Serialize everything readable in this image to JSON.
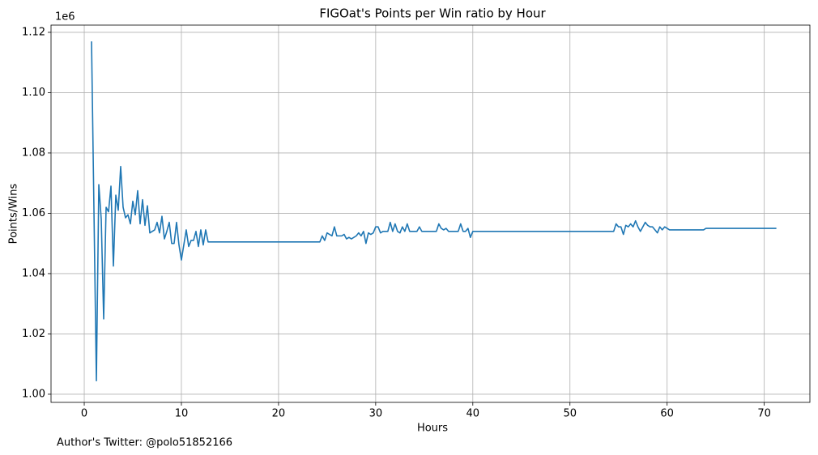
{
  "chart_data": {
    "type": "line",
    "title": "FIGOat's Points per Win ratio by Hour",
    "x_label": "Hours",
    "y_label": "Points/Wins",
    "y_offset_label": "1e6",
    "caption": "Author's Twitter: @polo51852166",
    "grid": true,
    "xlim": [
      -3.42,
      74.7
    ],
    "xticks": [
      0,
      10,
      20,
      30,
      40,
      50,
      60,
      70
    ],
    "ylim": [
      997300,
      1122400
    ],
    "yticks": [
      {
        "value": 1000000,
        "label": "1.00"
      },
      {
        "value": 1020000,
        "label": "1.02"
      },
      {
        "value": 1040000,
        "label": "1.04"
      },
      {
        "value": 1060000,
        "label": "1.06"
      },
      {
        "value": 1080000,
        "label": "1.08"
      },
      {
        "value": 1100000,
        "label": "1.10"
      },
      {
        "value": 1120000,
        "label": "1.12"
      }
    ],
    "x": [
      0.75,
      1.25,
      1.5,
      1.75,
      2.0,
      2.25,
      2.5,
      2.75,
      3.0,
      3.25,
      3.5,
      3.75,
      4.0,
      4.25,
      4.5,
      4.75,
      5.0,
      5.25,
      5.5,
      5.75,
      6.0,
      6.25,
      6.5,
      6.75,
      7.0,
      7.25,
      7.5,
      7.75,
      8.0,
      8.25,
      8.5,
      8.75,
      9.0,
      9.25,
      9.5,
      9.75,
      10.0,
      10.25,
      10.5,
      10.75,
      11.0,
      11.25,
      11.5,
      11.75,
      12.0,
      12.25,
      12.5,
      12.75,
      24.25,
      24.5,
      24.75,
      25.0,
      25.5,
      25.75,
      26.0,
      26.5,
      26.75,
      27.0,
      27.25,
      27.5,
      28.0,
      28.25,
      28.5,
      28.75,
      29.0,
      29.25,
      29.5,
      29.75,
      30.0,
      30.25,
      30.5,
      30.75,
      31.25,
      31.5,
      31.75,
      32.0,
      32.25,
      32.5,
      32.75,
      33.0,
      33.25,
      33.5,
      34.25,
      34.5,
      34.75,
      36.25,
      36.5,
      36.75,
      37.0,
      37.25,
      37.5,
      38.5,
      38.75,
      39.0,
      39.25,
      39.5,
      39.75,
      40.0,
      54.5,
      54.75,
      55.0,
      55.25,
      55.5,
      55.75,
      56.0,
      56.25,
      56.5,
      56.75,
      57.0,
      57.25,
      57.5,
      57.75,
      58.0,
      58.25,
      58.5,
      58.75,
      59.0,
      59.25,
      59.5,
      59.75,
      60.0,
      60.25,
      63.75,
      64.0,
      71.25
    ],
    "series": [
      {
        "name": "Points/Wins",
        "color": "#1f77b4",
        "values": [
          1117000,
          1004500,
          1069500,
          1058000,
          1025000,
          1062000,
          1060500,
          1069000,
          1042500,
          1066000,
          1061000,
          1075500,
          1062000,
          1058500,
          1059500,
          1056500,
          1064000,
          1059500,
          1067500,
          1056500,
          1064500,
          1056000,
          1062500,
          1053500,
          1054000,
          1054500,
          1057000,
          1053500,
          1059000,
          1051500,
          1054000,
          1057000,
          1050000,
          1050000,
          1057000,
          1049500,
          1044500,
          1049500,
          1054500,
          1049000,
          1051000,
          1051000,
          1054000,
          1049000,
          1054500,
          1049500,
          1054500,
          1050500,
          1050500,
          1052500,
          1051000,
          1053500,
          1052500,
          1055500,
          1052500,
          1052500,
          1053000,
          1051500,
          1052000,
          1051500,
          1052500,
          1053500,
          1052500,
          1054000,
          1050000,
          1053500,
          1053000,
          1053500,
          1055500,
          1055500,
          1053500,
          1054000,
          1054000,
          1057000,
          1054000,
          1056500,
          1054000,
          1053500,
          1055500,
          1054000,
          1056500,
          1054000,
          1054000,
          1055500,
          1054000,
          1054000,
          1056500,
          1055000,
          1054500,
          1055000,
          1054000,
          1054000,
          1056500,
          1054000,
          1054000,
          1055000,
          1052000,
          1054000,
          1054000,
          1056500,
          1055500,
          1055500,
          1053000,
          1056000,
          1055500,
          1056500,
          1055500,
          1057500,
          1055500,
          1054000,
          1055500,
          1057000,
          1056000,
          1055500,
          1055500,
          1054500,
          1053500,
          1055500,
          1054500,
          1055500,
          1055000,
          1054500,
          1054500,
          1055000,
          1055000
        ]
      }
    ]
  }
}
